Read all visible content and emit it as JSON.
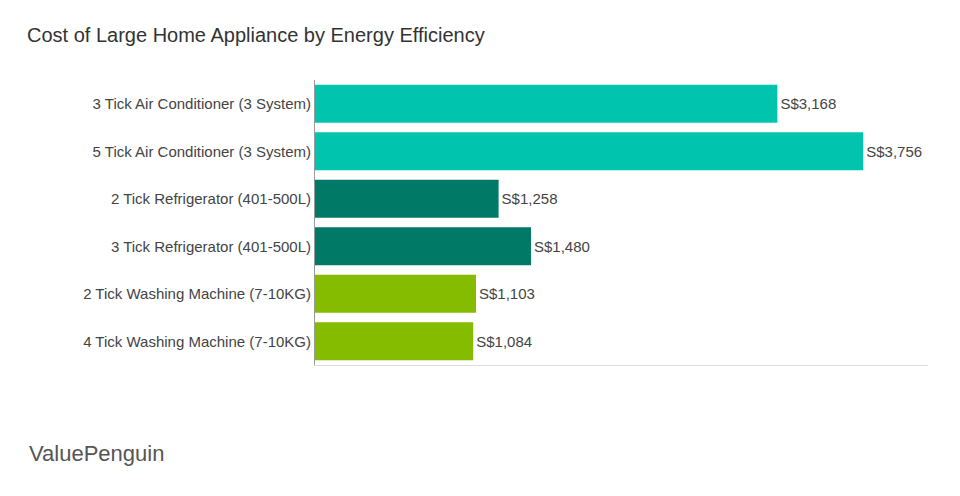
{
  "chart_data": {
    "type": "bar",
    "orientation": "horizontal",
    "title": "Cost of Large Home Appliance by Energy Efficiency",
    "categories": [
      "3 Tick Air Conditioner (3 System)",
      "5 Tick Air Conditioner (3 System)",
      "2 Tick Refrigerator (401-500L)",
      "3 Tick Refrigerator (401-500L)",
      "2 Tick Washing Machine (7-10KG)",
      "4 Tick Washing Machine (7-10KG)"
    ],
    "values": [
      3168,
      3756,
      1258,
      1480,
      1103,
      1084
    ],
    "value_labels": [
      "S$3,168",
      "S$3,756",
      "S$1,258",
      "S$1,480",
      "S$1,103",
      "S$1,084"
    ],
    "colors": [
      "#00c4ae",
      "#00c4ae",
      "#007a66",
      "#007a66",
      "#85bc00",
      "#85bc00"
    ],
    "data_labels": true,
    "xlim": [
      0,
      4200
    ],
    "tick_labels": "y",
    "grid": false,
    "annotations": [
      "ValuePenguin"
    ]
  }
}
